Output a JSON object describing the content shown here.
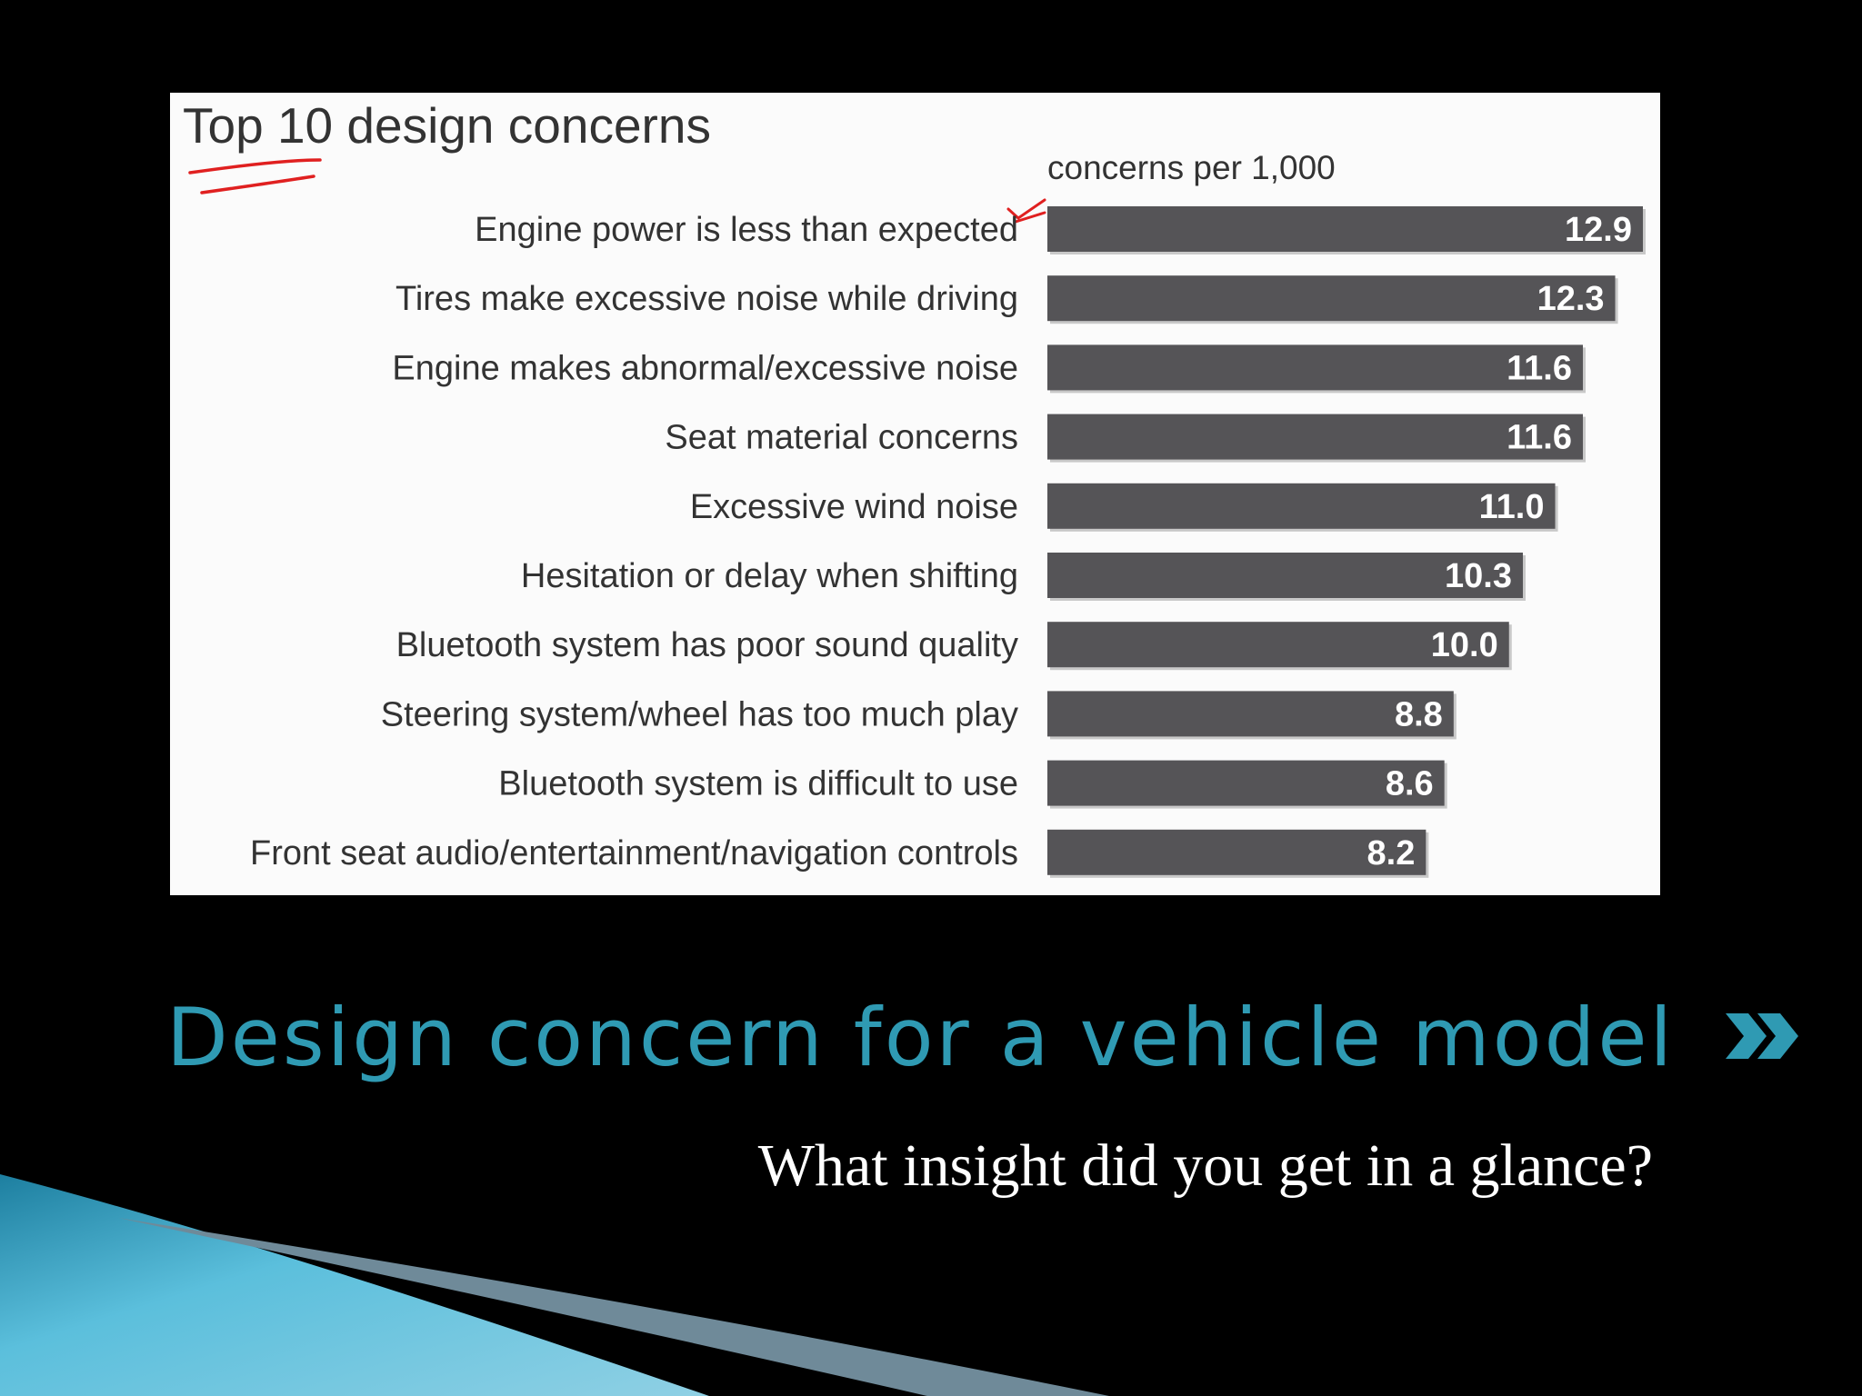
{
  "slide": {
    "title": "Design concern for a vehicle model",
    "subtitle": "What insight did you get in a glance?"
  },
  "icons": [
    "chevron-double-right-icon"
  ],
  "colors": {
    "background": "#000000",
    "title": "#2f9ab3",
    "bar": "#555457",
    "annotation": "#e02020"
  },
  "chart_data": {
    "type": "bar",
    "orientation": "horizontal",
    "title": "Top 10 design concerns",
    "xlabel": "concerns per 1,000",
    "categories": [
      "Engine power is less than expected",
      "Tires make excessive noise while driving",
      "Engine makes abnormal/excessive noise",
      "Seat material concerns",
      "Excessive wind noise",
      "Hesitation or delay when shifting",
      "Bluetooth system has poor sound quality",
      "Steering system/wheel has too much play",
      "Bluetooth system is difficult to use",
      "Front seat audio/entertainment/navigation controls"
    ],
    "values": [
      12.9,
      12.3,
      11.6,
      11.6,
      11.0,
      10.3,
      10.0,
      8.8,
      8.6,
      8.2
    ],
    "value_labels": [
      "12.9",
      "12.3",
      "11.6",
      "11.6",
      "11.0",
      "10.3",
      "10.0",
      "8.8",
      "8.6",
      "8.2"
    ],
    "xlim": [
      0,
      12.9
    ],
    "grid": false,
    "legend": "none"
  }
}
